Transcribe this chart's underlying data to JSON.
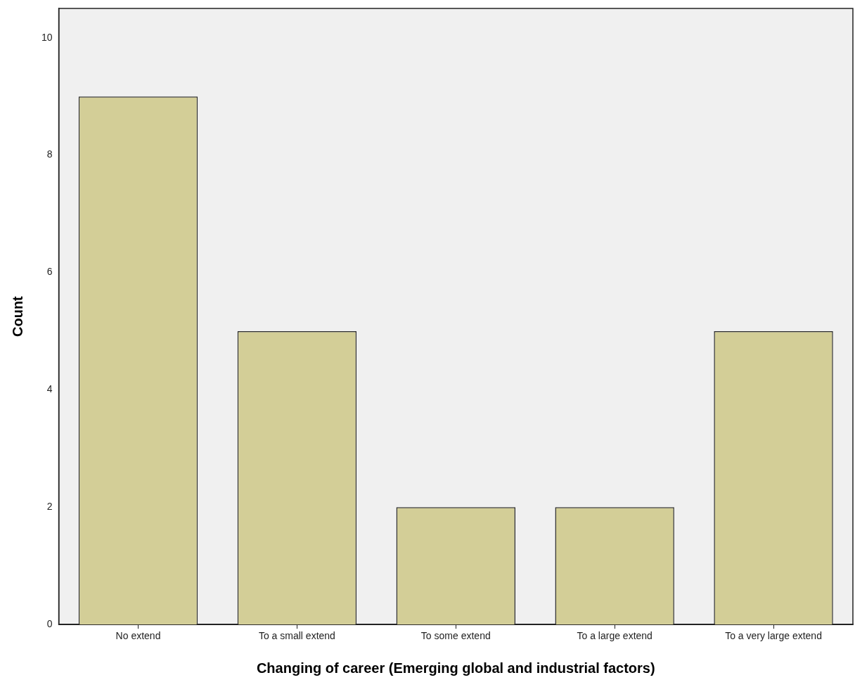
{
  "chart_data": {
    "type": "bar",
    "xlabel": "Changing of career (Emerging global and industrial factors)",
    "ylabel": "Count",
    "categories": [
      "No extend",
      "To a small extend",
      "To some extend",
      "To a large extend",
      "To a very large extend"
    ],
    "values": [
      9,
      5,
      2,
      2,
      5
    ],
    "color": "#d3ce97",
    "ylim": [
      0,
      10.5
    ],
    "yticks": [
      0,
      2,
      4,
      6,
      8,
      10
    ],
    "grid": false,
    "legend": false
  }
}
